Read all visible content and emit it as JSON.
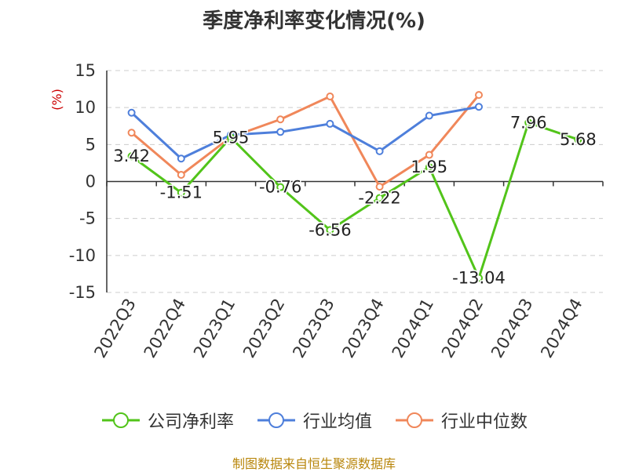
{
  "chart_data": {
    "type": "line",
    "title": "季度净利率变化情况(%)",
    "ylabel": "(%)",
    "xlabel": "",
    "ylim": [
      -15,
      15
    ],
    "yticks": [
      15,
      10,
      5,
      0,
      -5,
      -10,
      -15
    ],
    "categories": [
      "2022Q3",
      "2022Q4",
      "2023Q1",
      "2023Q2",
      "2023Q3",
      "2023Q4",
      "2024Q1",
      "2024Q2",
      "2024Q3",
      "2024Q4"
    ],
    "series": [
      {
        "name": "公司净利率",
        "color": "#52c41a",
        "values": [
          3.42,
          -1.51,
          5.95,
          -0.76,
          -6.56,
          -2.22,
          1.95,
          -13.04,
          7.96,
          5.68
        ],
        "labels": [
          "3.42",
          "-1.51",
          "5.95",
          "-0.76",
          "-6.56",
          "-2.22",
          "1.95",
          "-13.04",
          "7.96",
          "5.68"
        ]
      },
      {
        "name": "行业均值",
        "color": "#4e7fdb",
        "values": [
          9.3,
          3.1,
          6.3,
          6.7,
          7.8,
          4.1,
          8.9,
          10.1,
          null,
          null
        ]
      },
      {
        "name": "行业中位数",
        "color": "#f0875a",
        "values": [
          6.6,
          0.9,
          6.0,
          8.4,
          11.5,
          -0.7,
          3.6,
          11.7,
          null,
          null
        ]
      }
    ],
    "grid": true,
    "legend_position": "bottom"
  },
  "source_text": "制图数据来自恒生聚源数据库"
}
